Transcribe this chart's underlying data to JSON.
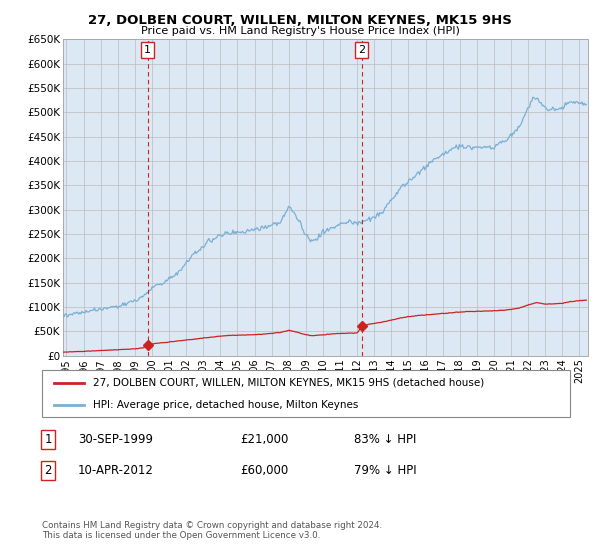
{
  "title": "27, DOLBEN COURT, WILLEN, MILTON KEYNES, MK15 9HS",
  "subtitle": "Price paid vs. HM Land Registry's House Price Index (HPI)",
  "background_color": "#ffffff",
  "plot_bg_color": "#dce9f5",
  "grid_color": "#bbbbbb",
  "hpi_color": "#7aafd4",
  "price_color": "#cc2222",
  "sale1_x": 1999.747,
  "sale1_price": 21000,
  "sale2_x": 2012.274,
  "sale2_price": 60000,
  "ylim": [
    0,
    650000
  ],
  "xlim_start": 1994.8,
  "xlim_end": 2025.5,
  "yticks": [
    0,
    50000,
    100000,
    150000,
    200000,
    250000,
    300000,
    350000,
    400000,
    450000,
    500000,
    550000,
    600000,
    650000
  ],
  "ytick_labels": [
    "£0",
    "£50K",
    "£100K",
    "£150K",
    "£200K",
    "£250K",
    "£300K",
    "£350K",
    "£400K",
    "£450K",
    "£500K",
    "£550K",
    "£600K",
    "£650K"
  ],
  "xtick_years": [
    1995,
    1996,
    1997,
    1998,
    1999,
    2000,
    2001,
    2002,
    2003,
    2004,
    2005,
    2006,
    2007,
    2008,
    2009,
    2010,
    2011,
    2012,
    2013,
    2014,
    2015,
    2016,
    2017,
    2018,
    2019,
    2020,
    2021,
    2022,
    2023,
    2024,
    2025
  ],
  "legend_price_label": "27, DOLBEN COURT, WILLEN, MILTON KEYNES, MK15 9HS (detached house)",
  "legend_hpi_label": "HPI: Average price, detached house, Milton Keynes",
  "note1_num": "1",
  "note1_date": "30-SEP-1999",
  "note1_price": "£21,000",
  "note1_pct": "83% ↓ HPI",
  "note2_num": "2",
  "note2_date": "10-APR-2012",
  "note2_price": "£60,000",
  "note2_pct": "79% ↓ HPI",
  "footer": "Contains HM Land Registry data © Crown copyright and database right 2024.\nThis data is licensed under the Open Government Licence v3.0."
}
